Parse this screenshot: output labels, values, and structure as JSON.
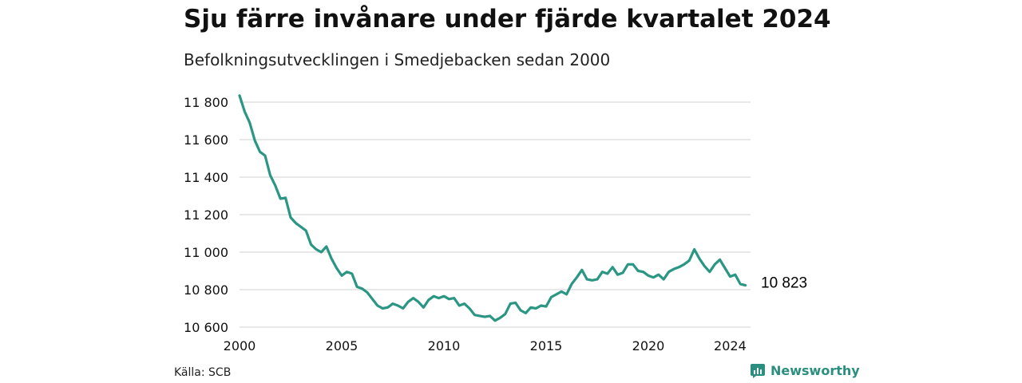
{
  "title": "Sju färre invånare under fjärde kvartalet 2024",
  "subtitle": "Befolkningsutvecklingen i Smedjebacken sedan 2000",
  "source": "Källa: SCB",
  "brand": {
    "name": "Newsworthy",
    "icon": "newsworthy-logo-icon",
    "color": "#2a8f7f"
  },
  "colors": {
    "line": "#2a9683",
    "grid": "#d9d9d9",
    "text": "#111111"
  },
  "chart_data": {
    "type": "line",
    "xlabel": "",
    "ylabel": "",
    "x_ticks": [
      2000,
      2005,
      2010,
      2015,
      2020,
      2024
    ],
    "x_tick_labels": [
      "2000",
      "2005",
      "2010",
      "2015",
      "2020",
      "2024"
    ],
    "y_ticks": [
      10600,
      10800,
      11000,
      11200,
      11400,
      11600,
      11800
    ],
    "y_tick_labels": [
      "10 600",
      "10 800",
      "11 000",
      "11 200",
      "11 400",
      "11 600",
      "11 800"
    ],
    "xlim": [
      2000,
      2025
    ],
    "ylim": [
      10600,
      11800
    ],
    "grid": true,
    "end_label": "10 823",
    "series": [
      {
        "x": [
          2000.0,
          2000.25,
          2000.5,
          2000.75,
          2001.0,
          2001.25,
          2001.5,
          2001.75,
          2002.0,
          2002.25,
          2002.5,
          2002.75,
          2003.0,
          2003.25,
          2003.5,
          2003.75,
          2004.0,
          2004.25,
          2004.5,
          2004.75,
          2005.0,
          2005.25,
          2005.5,
          2005.75,
          2006.0,
          2006.25,
          2006.5,
          2006.75,
          2007.0,
          2007.25,
          2007.5,
          2007.75,
          2008.0,
          2008.25,
          2008.5,
          2008.75,
          2009.0,
          2009.25,
          2009.5,
          2009.75,
          2010.0,
          2010.25,
          2010.5,
          2010.75,
          2011.0,
          2011.25,
          2011.5,
          2011.75,
          2012.0,
          2012.25,
          2012.5,
          2012.75,
          2013.0,
          2013.25,
          2013.5,
          2013.75,
          2014.0,
          2014.25,
          2014.5,
          2014.75,
          2015.0,
          2015.25,
          2015.5,
          2015.75,
          2016.0,
          2016.25,
          2016.5,
          2016.75,
          2017.0,
          2017.25,
          2017.5,
          2017.75,
          2018.0,
          2018.25,
          2018.5,
          2018.75,
          2019.0,
          2019.25,
          2019.5,
          2019.75,
          2020.0,
          2020.25,
          2020.5,
          2020.75,
          2021.0,
          2021.25,
          2021.5,
          2021.75,
          2022.0,
          2022.25,
          2022.5,
          2022.75,
          2023.0,
          2023.25,
          2023.5,
          2023.75,
          2024.0,
          2024.25,
          2024.5,
          2024.75
        ],
        "values": [
          11835,
          11750,
          11690,
          11595,
          11535,
          11515,
          11410,
          11355,
          11285,
          11290,
          11185,
          11155,
          11135,
          11115,
          11040,
          11015,
          11000,
          11030,
          10965,
          10915,
          10875,
          10895,
          10885,
          10815,
          10805,
          10785,
          10750,
          10715,
          10700,
          10705,
          10725,
          10715,
          10700,
          10735,
          10755,
          10735,
          10705,
          10745,
          10765,
          10755,
          10765,
          10750,
          10755,
          10715,
          10725,
          10700,
          10665,
          10660,
          10655,
          10660,
          10635,
          10650,
          10670,
          10725,
          10730,
          10690,
          10675,
          10705,
          10700,
          10715,
          10710,
          10760,
          10775,
          10790,
          10775,
          10830,
          10865,
          10905,
          10855,
          10850,
          10855,
          10895,
          10885,
          10920,
          10880,
          10890,
          10935,
          10935,
          10900,
          10895,
          10875,
          10865,
          10880,
          10855,
          10895,
          10910,
          10920,
          10935,
          10955,
          11015,
          10965,
          10925,
          10895,
          10935,
          10960,
          10915,
          10870,
          10880,
          10830,
          10823
        ]
      }
    ]
  }
}
